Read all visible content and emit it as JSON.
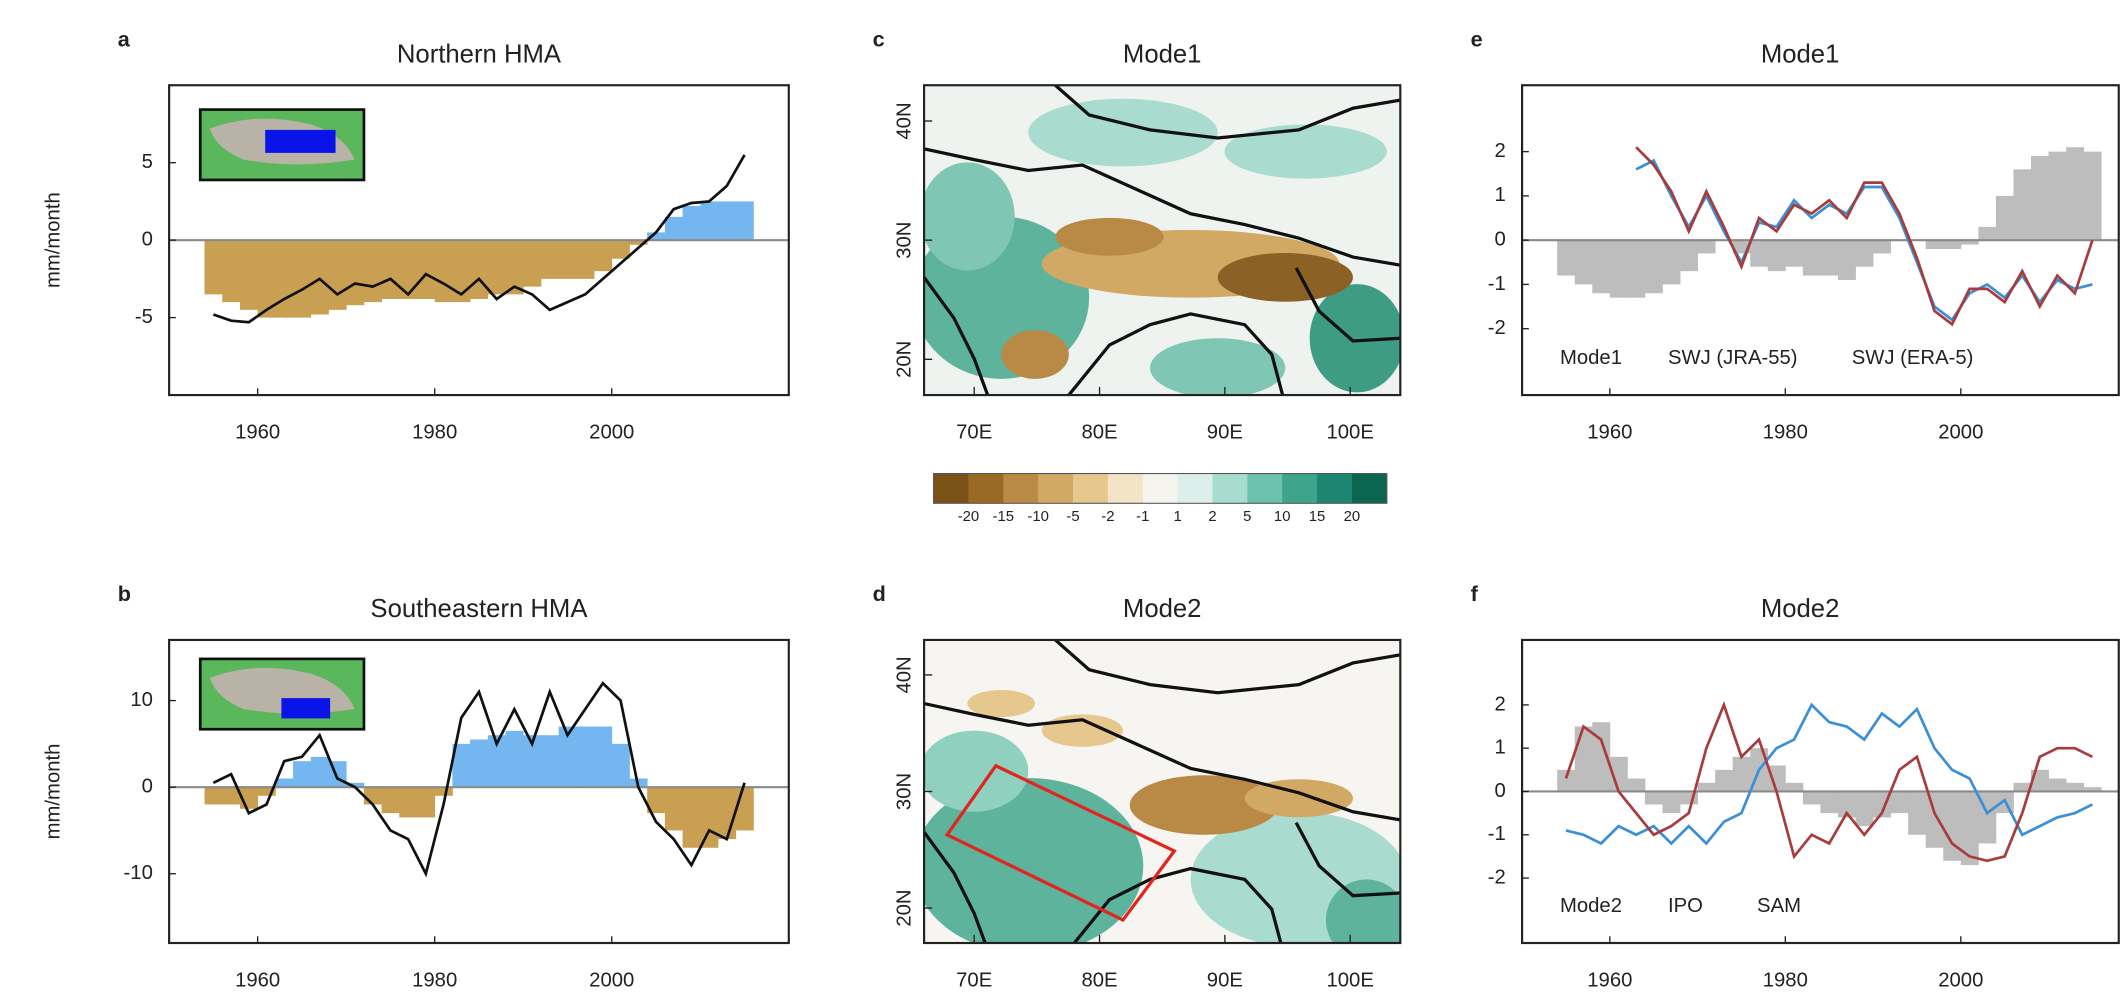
{
  "chart_data": [
    {
      "type": "combo",
      "panel_label": "a",
      "title": "Northern HMA",
      "y_label": "mm/month",
      "xlim": [
        1950,
        2020
      ],
      "xticks": [
        1960,
        1980,
        2000
      ],
      "ylim": [
        -10,
        10
      ],
      "yticks": [
        5,
        0,
        -5
      ],
      "x": [
        1955,
        1957,
        1959,
        1961,
        1963,
        1965,
        1967,
        1969,
        1971,
        1973,
        1975,
        1977,
        1979,
        1981,
        1983,
        1985,
        1987,
        1989,
        1991,
        1993,
        1995,
        1997,
        1999,
        2001,
        2003,
        2005,
        2007,
        2009,
        2011,
        2013,
        2015
      ],
      "series": [
        {
          "type": "bar",
          "color": "#c9a052",
          "color_positive": "#74b6f0",
          "values": [
            -3.5,
            -4,
            -4.5,
            -5,
            -5,
            -5,
            -4.8,
            -4.5,
            -4.2,
            -4,
            -3.8,
            -3.8,
            -3.8,
            -4,
            -4,
            -3.8,
            -3.5,
            -3.5,
            -3,
            -2.5,
            -2.5,
            -2.5,
            -2,
            -1.2,
            -0.3,
            0.5,
            1.5,
            2.2,
            2.5,
            2.5,
            2.5
          ]
        },
        {
          "type": "line",
          "color": "#111111",
          "values": [
            -4.8,
            -5.2,
            -5.3,
            -4.5,
            -3.8,
            -3.2,
            -2.5,
            -3.5,
            -2.8,
            -3,
            -2.5,
            -3.5,
            -2.2,
            -2.8,
            -3.5,
            -2.5,
            -3.8,
            -3,
            -3.5,
            -4.5,
            -4,
            -3.5,
            -2.5,
            -1.5,
            -0.5,
            0.5,
            2,
            2.4,
            2.5,
            3.5,
            5.5
          ]
        }
      ]
    },
    {
      "type": "combo",
      "panel_label": "b",
      "title": "Southeastern HMA",
      "y_label": "mm/month",
      "xlim": [
        1950,
        2020
      ],
      "xticks": [
        1960,
        1980,
        2000
      ],
      "ylim": [
        -18,
        17
      ],
      "yticks": [
        10,
        0,
        -10
      ],
      "x": [
        1955,
        1957,
        1959,
        1961,
        1963,
        1965,
        1967,
        1969,
        1971,
        1973,
        1975,
        1977,
        1979,
        1981,
        1983,
        1985,
        1987,
        1989,
        1991,
        1993,
        1995,
        1997,
        1999,
        2001,
        2003,
        2005,
        2007,
        2009,
        2011,
        2013,
        2015
      ],
      "series": [
        {
          "type": "bar",
          "color": "#c9a052",
          "color_positive": "#74b6f0",
          "values": [
            -2,
            -2,
            -2.5,
            -1,
            1,
            3,
            3.5,
            3,
            0.5,
            -2,
            -3,
            -3.5,
            -3.5,
            -1,
            5,
            5.5,
            6,
            6.5,
            6,
            6,
            7,
            7,
            7,
            5,
            1,
            -3,
            -5,
            -7,
            -7,
            -6,
            -5
          ]
        },
        {
          "type": "line",
          "color": "#111111",
          "values": [
            0.5,
            1.5,
            -3,
            -2,
            3,
            3.5,
            6,
            1,
            0,
            -2,
            -5,
            -6,
            -10,
            -2,
            8,
            11,
            5,
            9,
            5,
            11,
            6,
            9,
            12,
            10,
            0,
            -4,
            -6,
            -9,
            -5,
            -6,
            0.5
          ]
        }
      ]
    },
    {
      "type": "map",
      "panel_label": "c",
      "title": "Mode1",
      "xlim": [
        66,
        104
      ],
      "xticks": [
        {
          "value": 70,
          "label": "70E"
        },
        {
          "value": 80,
          "label": "80E"
        },
        {
          "value": 90,
          "label": "90E"
        },
        {
          "value": 100,
          "label": "100E"
        }
      ],
      "ylim": [
        17,
        43
      ],
      "yticks": [
        {
          "value": 20,
          "label": "20N"
        },
        {
          "value": 30,
          "label": "30N"
        },
        {
          "value": 40,
          "label": "40N"
        }
      ],
      "colorbar": {
        "ticks": [
          -20,
          -15,
          -10,
          -5,
          -2,
          -1,
          1,
          2,
          5,
          10,
          15,
          20
        ],
        "colors": [
          "#7a5218",
          "#9a6a25",
          "#b98a45",
          "#d2a865",
          "#e6c88e",
          "#f2e4c4",
          "#f5f3ee",
          "#dcefeb",
          "#a8dccf",
          "#6cc2ae",
          "#3ea58c",
          "#1e8670",
          "#0a6650"
        ]
      }
    },
    {
      "type": "map",
      "panel_label": "d",
      "title": "Mode2",
      "xlim": [
        66,
        104
      ],
      "xticks": [
        {
          "value": 70,
          "label": "70E"
        },
        {
          "value": 80,
          "label": "80E"
        },
        {
          "value": 90,
          "label": "90E"
        },
        {
          "value": 100,
          "label": "100E"
        }
      ],
      "ylim": [
        17,
        43
      ],
      "yticks": [
        {
          "value": 20,
          "label": "20N"
        },
        {
          "value": 30,
          "label": "30N"
        },
        {
          "value": 40,
          "label": "40N"
        }
      ]
    },
    {
      "type": "combo",
      "panel_label": "e",
      "title": "Mode1",
      "xlim": [
        1950,
        2018
      ],
      "xticks": [
        1960,
        1980,
        2000
      ],
      "ylim": [
        -3.5,
        3.5
      ],
      "yticks": [
        2,
        1,
        0,
        -1,
        -2
      ],
      "x": [
        1955,
        1957,
        1959,
        1961,
        1963,
        1965,
        1967,
        1969,
        1971,
        1973,
        1975,
        1977,
        1979,
        1981,
        1983,
        1985,
        1987,
        1989,
        1991,
        1993,
        1995,
        1997,
        1999,
        2001,
        2003,
        2005,
        2007,
        2009,
        2011,
        2013,
        2015
      ],
      "series": [
        {
          "type": "bar",
          "name": "Mode1",
          "color": "#bdbdbd",
          "values": [
            -0.8,
            -1,
            -1.2,
            -1.3,
            -1.3,
            -1.2,
            -1,
            -0.7,
            -0.3,
            0,
            -0.3,
            -0.6,
            -0.7,
            -0.6,
            -0.8,
            -0.8,
            -0.9,
            -0.6,
            -0.3,
            0,
            0,
            -0.2,
            -0.2,
            -0.1,
            0.3,
            1,
            1.6,
            1.9,
            2,
            2.1,
            2
          ]
        },
        {
          "type": "line",
          "name": "SWJ (JRA-55)",
          "color": "#3a8fd6",
          "values": [
            null,
            null,
            null,
            null,
            1.6,
            1.8,
            1,
            0.3,
            1,
            0.2,
            -0.5,
            0.4,
            0.3,
            0.9,
            0.5,
            0.8,
            0.6,
            1.2,
            1.2,
            0.5,
            -0.5,
            -1.5,
            -1.8,
            -1.2,
            -1,
            -1.3,
            -0.8,
            -1.4,
            -0.9,
            -1.1,
            -1
          ]
        },
        {
          "type": "line",
          "name": "SWJ (ERA-5)",
          "color": "#a83c3c",
          "values": [
            null,
            null,
            null,
            null,
            2.1,
            1.7,
            1.1,
            0.2,
            1.1,
            0.3,
            -0.6,
            0.5,
            0.2,
            0.8,
            0.6,
            0.9,
            0.5,
            1.3,
            1.3,
            0.6,
            -0.4,
            -1.6,
            -1.9,
            -1.1,
            -1.1,
            -1.4,
            -0.7,
            -1.5,
            -0.8,
            -1.2,
            0
          ]
        }
      ]
    },
    {
      "type": "combo",
      "panel_label": "f",
      "title": "Mode2",
      "xlim": [
        1950,
        2018
      ],
      "xticks": [
        1960,
        1980,
        2000
      ],
      "ylim": [
        -3.5,
        3.5
      ],
      "yticks": [
        2,
        1,
        0,
        -1,
        -2
      ],
      "x": [
        1955,
        1957,
        1959,
        1961,
        1963,
        1965,
        1967,
        1969,
        1971,
        1973,
        1975,
        1977,
        1979,
        1981,
        1983,
        1985,
        1987,
        1989,
        1991,
        1993,
        1995,
        1997,
        1999,
        2001,
        2003,
        2005,
        2007,
        2009,
        2011,
        2013,
        2015
      ],
      "series": [
        {
          "type": "bar",
          "name": "Mode2",
          "color": "#bdbdbd",
          "values": [
            0.5,
            1.5,
            1.6,
            0.8,
            0.3,
            -0.3,
            -0.5,
            -0.3,
            0.2,
            0.5,
            0.8,
            1,
            0.6,
            0.2,
            -0.3,
            -0.5,
            -0.6,
            -0.8,
            -0.6,
            -0.5,
            -1,
            -1.3,
            -1.6,
            -1.7,
            -1.2,
            -0.5,
            0.2,
            0.5,
            0.3,
            0.2,
            0.1
          ]
        },
        {
          "type": "line",
          "name": "IPO",
          "color": "#3a8fd6",
          "values": [
            -0.9,
            -1,
            -1.2,
            -0.8,
            -1,
            -0.8,
            -1.2,
            -0.8,
            -1.2,
            -0.7,
            -0.5,
            0.5,
            1,
            1.2,
            2,
            1.6,
            1.5,
            1.2,
            1.8,
            1.5,
            1.9,
            1,
            0.5,
            0.3,
            -0.5,
            -0.2,
            -1,
            -0.8,
            -0.6,
            -0.5,
            -0.3
          ]
        },
        {
          "type": "line",
          "name": "SAM",
          "color": "#a83c3c",
          "values": [
            0.3,
            1.5,
            1.2,
            0,
            -0.5,
            -1,
            -0.8,
            -0.5,
            1,
            2,
            0.8,
            1.2,
            0,
            -1.5,
            -1,
            -1.2,
            -0.5,
            -1,
            -0.5,
            0.5,
            0.8,
            -0.5,
            -1.2,
            -1.5,
            -1.6,
            -1.5,
            -0.5,
            0.8,
            1,
            1,
            0.8
          ]
        }
      ]
    }
  ]
}
